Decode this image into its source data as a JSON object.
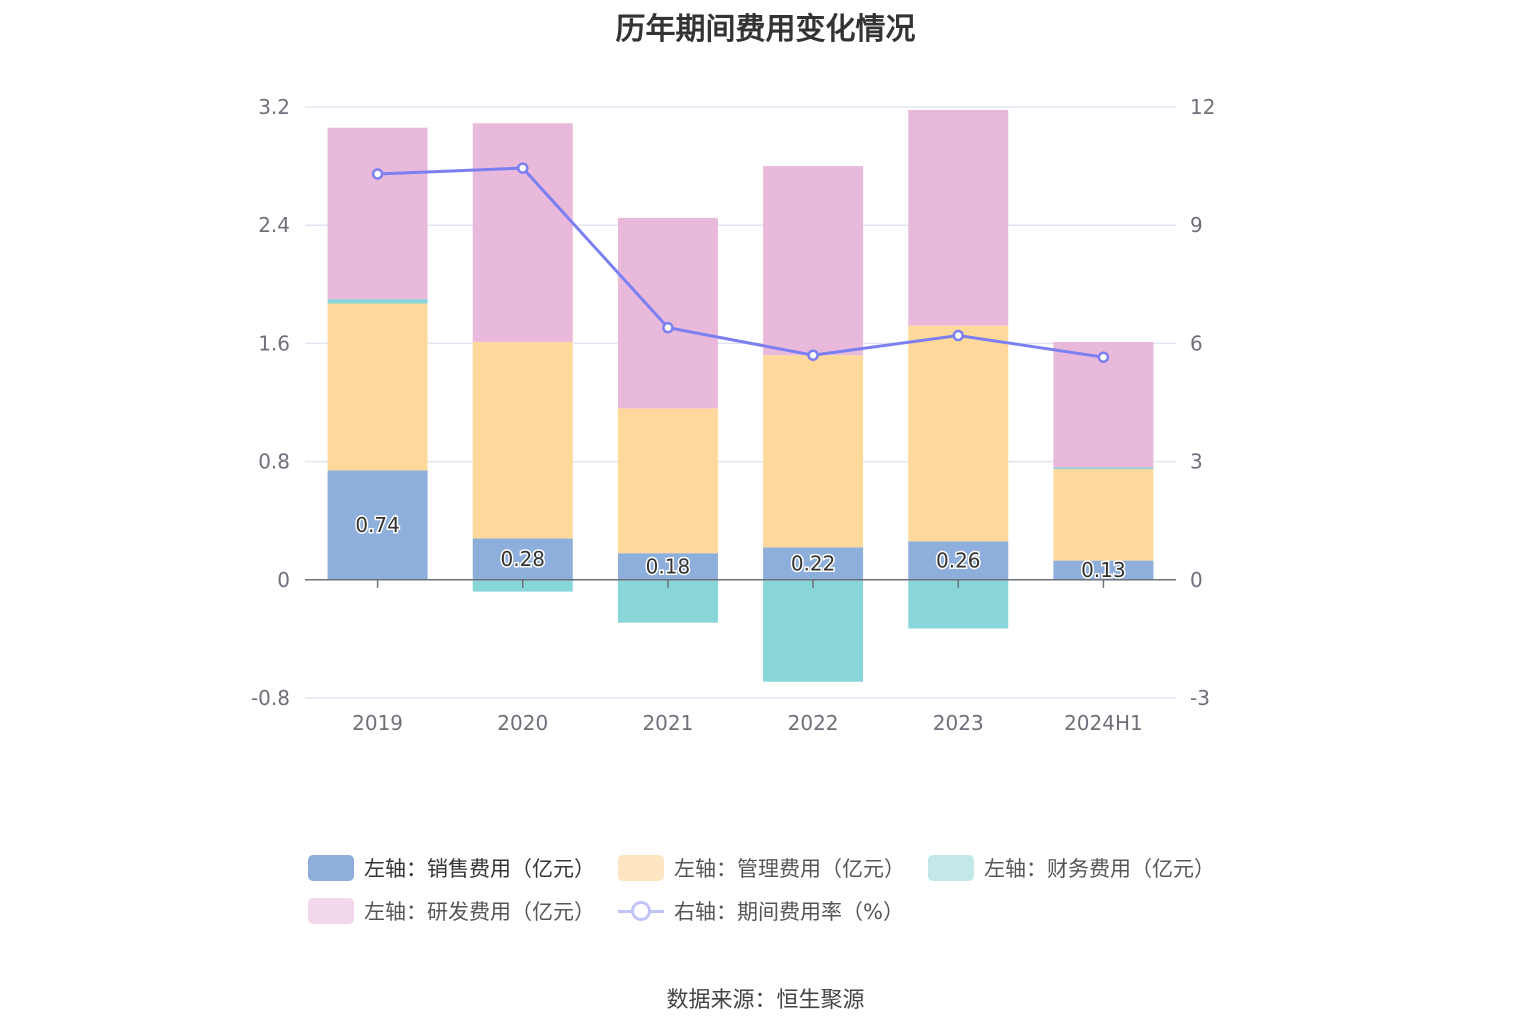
{
  "chart_data": {
    "type": "bar",
    "title": "历年期间费用变化情况",
    "categories": [
      "2019",
      "2020",
      "2021",
      "2022",
      "2023",
      "2024H1"
    ],
    "series": [
      {
        "name": "左轴：销售费用（亿元）",
        "type": "bar",
        "axis": "left",
        "stack": "total",
        "color": "#8eaedb",
        "values": [
          0.74,
          0.28,
          0.18,
          0.22,
          0.26,
          0.13
        ]
      },
      {
        "name": "左轴：管理费用（亿元）",
        "type": "bar",
        "axis": "left",
        "stack": "total",
        "color": "#ffd99b",
        "values": [
          1.13,
          1.33,
          0.98,
          1.3,
          1.46,
          0.62
        ]
      },
      {
        "name": "左轴：财务费用（亿元）",
        "type": "bar",
        "axis": "left",
        "stack": "total",
        "color": "#88d6d8",
        "values": [
          0.03,
          -0.08,
          -0.29,
          -0.69,
          -0.33,
          0.01
        ]
      },
      {
        "name": "左轴：研发费用（亿元）",
        "type": "bar",
        "axis": "left",
        "stack": "total",
        "color": "#e8b9da",
        "values": [
          1.16,
          1.48,
          1.29,
          1.28,
          1.46,
          0.85
        ]
      },
      {
        "name": "右轴：期间费用率（%）",
        "type": "line",
        "axis": "right",
        "color": "#7b7ff2",
        "values": [
          10.3,
          10.45,
          6.4,
          5.7,
          6.2,
          5.65
        ]
      }
    ],
    "data_labels": [
      "0.74",
      "0.28",
      "0.18",
      "0.22",
      "0.26",
      "0.13"
    ],
    "y_left": {
      "ylim": [
        -0.8,
        3.2
      ],
      "ticks": [
        "3.2",
        "2.4",
        "1.6",
        "0.8",
        "0",
        "-0.8"
      ]
    },
    "y_right": {
      "ylim": [
        -3,
        12
      ],
      "ticks": [
        "12",
        "9",
        "6",
        "3",
        "0",
        "-3"
      ]
    },
    "grid": true,
    "legend_placement": "bottom"
  },
  "source_text": "数据来源：恒生聚源"
}
